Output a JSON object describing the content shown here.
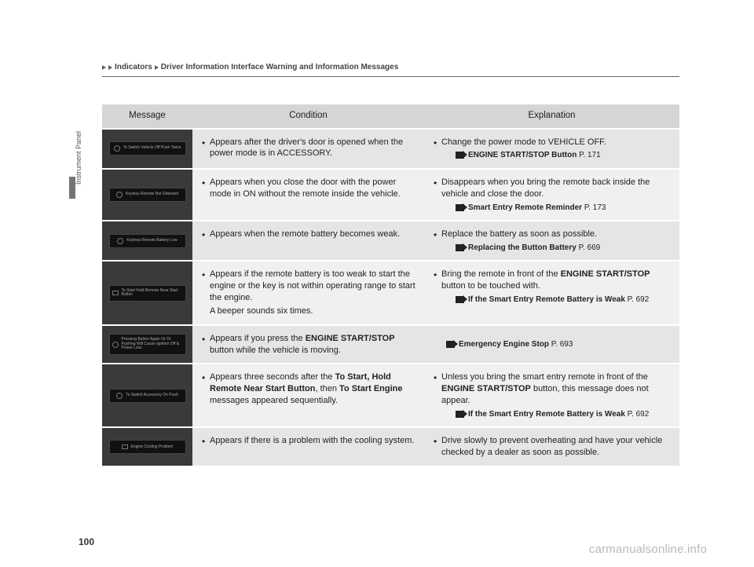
{
  "breadcrumb": {
    "part1": "Indicators",
    "part2": "Driver Information Interface Warning and Information Messages"
  },
  "side_label": "Instrument Panel",
  "page_number": "100",
  "watermark": "carmanualsonline.info",
  "headers": {
    "message": "Message",
    "condition": "Condition",
    "explanation": "Explanation"
  },
  "rows": [
    {
      "dash_text": "To Switch Vehicle Off\nPush Twice",
      "dash_icon": "circle",
      "condition_html": "Appears after the driver's door is opened when the power mode is in ACCESSORY.",
      "explanation_html": "Change the power mode to VEHICLE OFF.",
      "refs": [
        {
          "label": "ENGINE START/STOP Button",
          "page": "P. 171"
        }
      ]
    },
    {
      "dash_text": "Keyless Remote Not\nDetected",
      "dash_icon": "circle",
      "condition_html": "Appears when you close the door with the power mode in ON without the remote inside the vehicle.",
      "explanation_html": "Disappears when you bring the remote back inside the vehicle and close the door.",
      "refs": [
        {
          "label": "Smart Entry Remote Reminder",
          "page": "P. 173"
        }
      ]
    },
    {
      "dash_text": "Keyless Remote Battery\nLow",
      "dash_icon": "circle",
      "condition_html": "Appears when the remote battery becomes weak.",
      "explanation_html": "Replace the battery as soon as possible.",
      "refs": [
        {
          "label": "Replacing the Button Battery",
          "page": "P. 669"
        }
      ]
    },
    {
      "dash_text": "To Start Hold Remote\nNear Start Button",
      "dash_icon": "square",
      "condition_html": "Appears if the remote battery is too weak to start the engine or the key is not within operating range to start the engine.",
      "condition_extra": "A beeper sounds six times.",
      "explanation_html": "Bring the remote in front of the <b>ENGINE START/STOP</b> button to be touched with.",
      "refs": [
        {
          "label": "If the Smart Entry Remote Battery is Weak",
          "page": "P. 692"
        }
      ]
    },
    {
      "dash_text": "Pressing Button Again Or\nOr Pushing Will Cause\nIgnition Off & Power Loss",
      "dash_icon": "circle",
      "condition_html": "Appears if you press the <b>ENGINE START/STOP</b> button while the vehicle is moving.",
      "explanation_html": "",
      "refs": [
        {
          "label": "Emergency Engine Stop",
          "page": "P. 693"
        }
      ]
    },
    {
      "dash_text": "To Switch Accessory On\nPush",
      "dash_icon": "circle",
      "condition_html": "Appears three seconds after the <b>To Start, Hold Remote Near Start Button</b>, then <b>To Start Engine</b> messages appeared sequentially.",
      "explanation_html": "Unless you bring the smart entry remote in front of the <b>ENGINE START/STOP</b> button, this message does not appear.",
      "refs": [
        {
          "label": "If the Smart Entry Remote Battery is Weak",
          "page": "P. 692"
        }
      ]
    },
    {
      "dash_text": "Engine Cooling Problem",
      "dash_icon": "square",
      "condition_html": "Appears if there is a problem with the cooling system.",
      "explanation_html": "Drive slowly to prevent overheating and have your vehicle checked by a dealer as soon as possible.",
      "refs": []
    }
  ]
}
